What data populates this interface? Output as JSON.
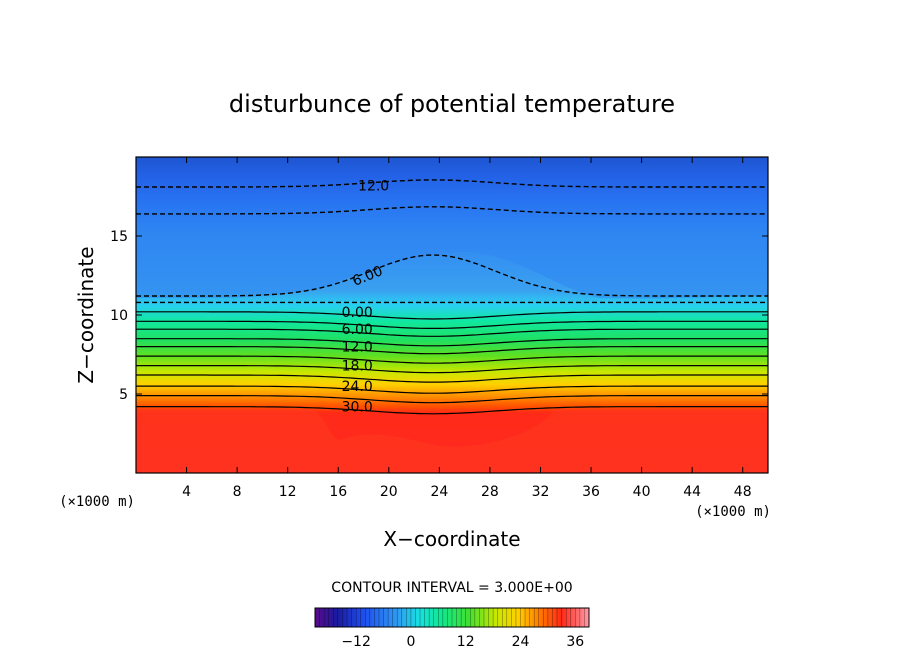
{
  "chart_data": {
    "type": "heatmap",
    "title": "disturbunce of potential temperature",
    "xlabel": "X−coordinate",
    "ylabel": "Z−coordinate",
    "x_unit": "(×1000 m)",
    "y_unit": "(×1000 m)",
    "xlim": [
      0,
      50
    ],
    "ylim": [
      0,
      20
    ],
    "x_ticks": [
      4,
      8,
      12,
      16,
      20,
      24,
      28,
      32,
      36,
      40,
      44,
      48
    ],
    "y_ticks": [
      5,
      10,
      15
    ],
    "contour_labels": [
      {
        "text": "12.0",
        "x": 18.8,
        "z": 18.2
      },
      {
        "text": "6.00",
        "x": 18.3,
        "z": 12.5
      },
      {
        "text": "0.00",
        "x": 17.5,
        "z": 10.2
      },
      {
        "text": "6.00",
        "x": 17.5,
        "z": 9.1
      },
      {
        "text": "12.0",
        "x": 17.5,
        "z": 8.0
      },
      {
        "text": "18.0",
        "x": 17.5,
        "z": 6.8
      },
      {
        "text": "24.0",
        "x": 17.5,
        "z": 5.5
      },
      {
        "text": "30.0",
        "x": 17.5,
        "z": 4.2
      }
    ],
    "contour_interval_text": "CONTOUR INTERVAL = 3.000E+00",
    "colorbar": {
      "range": [
        -21,
        39
      ],
      "tick_labels": [
        "−12",
        "0",
        "12",
        "24",
        "36"
      ],
      "tick_values": [
        -12,
        0,
        12,
        24,
        36
      ]
    }
  }
}
